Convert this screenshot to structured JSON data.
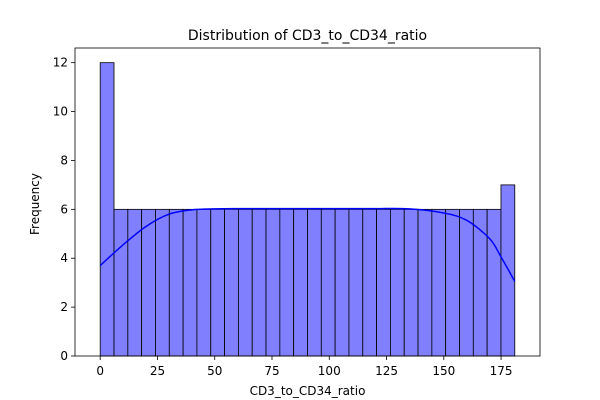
{
  "chart_data": {
    "type": "bar",
    "title": "Distribution of CD3_to_CD34_ratio",
    "xlabel": "CD3_to_CD34_ratio",
    "ylabel": "Frequency",
    "xlim": [
      -11,
      192
    ],
    "ylim": [
      0,
      12.6
    ],
    "xticks": [
      0,
      25,
      50,
      75,
      100,
      125,
      150,
      175
    ],
    "yticks": [
      0,
      2,
      4,
      6,
      8,
      10,
      12
    ],
    "bin_start": 0,
    "bin_width": 6.033,
    "values": [
      12,
      6,
      6,
      6,
      6,
      6,
      6,
      6,
      6,
      6,
      6,
      6,
      6,
      6,
      6,
      6,
      6,
      6,
      6,
      6,
      6,
      6,
      6,
      6,
      6,
      6,
      6,
      6,
      6,
      7
    ],
    "kde": {
      "x": [
        0,
        10,
        20,
        30,
        40,
        50,
        60,
        75,
        90,
        105,
        120,
        135,
        150,
        160,
        170,
        175,
        181
      ],
      "y": [
        3.7,
        4.55,
        5.3,
        5.8,
        5.98,
        6.02,
        6.03,
        6.03,
        6.03,
        6.03,
        6.03,
        6.02,
        5.85,
        5.55,
        4.8,
        4.05,
        3.05
      ]
    },
    "bar_fill": "#8080ff",
    "bar_edge": "#000000",
    "kde_color": "#0000ff",
    "grid": false
  }
}
